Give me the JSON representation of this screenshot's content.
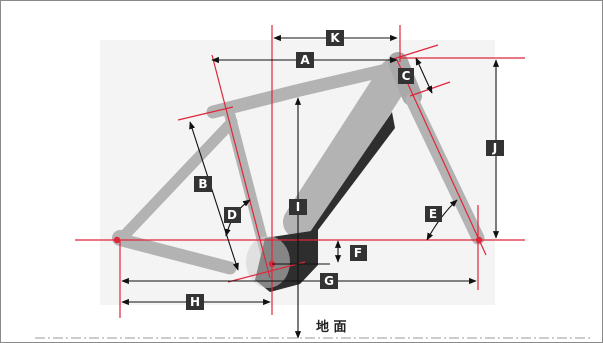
{
  "labels": {
    "A": "A",
    "B": "B",
    "C": "C",
    "D": "D",
    "E": "E",
    "F": "F",
    "G": "G",
    "H": "H",
    "I": "I",
    "J": "J",
    "K": "K"
  },
  "ground_label": "地 面",
  "colors": {
    "frame": "#b3b3b3",
    "frame_dark": "#2e2e2e",
    "line": "#e0263a",
    "arrow": "#111111",
    "label_bg": "#333333"
  }
}
